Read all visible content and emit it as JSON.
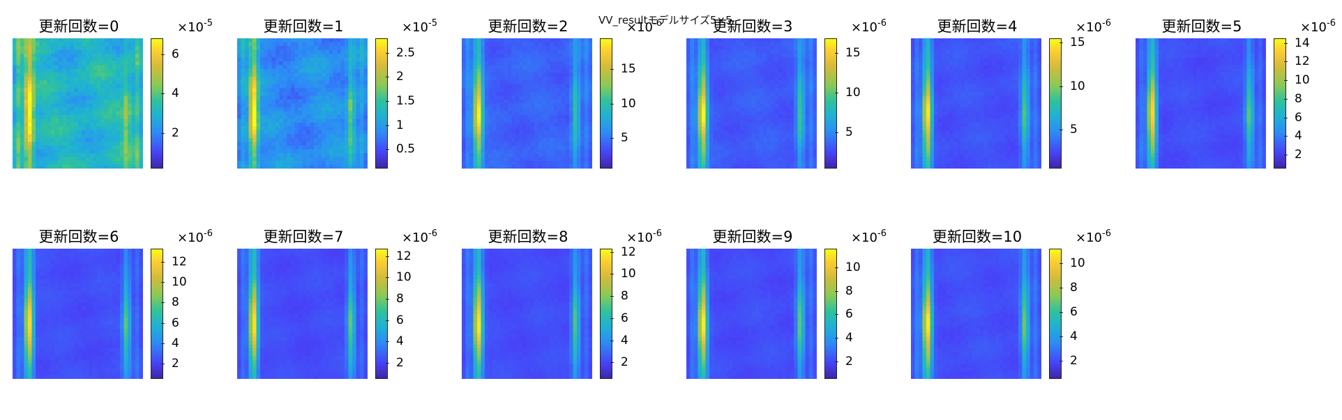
{
  "figure": {
    "suptitle": "VV_resultモデルサイズ5×5"
  },
  "chart_data": [
    {
      "type": "heatmap",
      "title": "更新回数=0",
      "colormap": "parula",
      "scale_exponent": "-5",
      "colorbar_ticks": [
        "2",
        "4",
        "6"
      ],
      "colorbar_tick_values": [
        2,
        4,
        6
      ],
      "clim": [
        0.2,
        6.8
      ],
      "pattern": {
        "left_peak": 6.5,
        "right_peak": 3.6,
        "background": 2.0,
        "noise": 1.4
      }
    },
    {
      "type": "heatmap",
      "title": "更新回数=1",
      "colormap": "parula",
      "scale_exponent": "-5",
      "colorbar_ticks": [
        "0.5",
        "1",
        "1.5",
        "2",
        "2.5"
      ],
      "colorbar_tick_values": [
        0.5,
        1,
        1.5,
        2,
        2.5
      ],
      "clim": [
        0.1,
        2.8
      ],
      "pattern": {
        "left_peak": 2.6,
        "right_peak": 1.5,
        "background": 0.55,
        "noise": 0.45
      }
    },
    {
      "type": "heatmap",
      "title": "更新回数=2",
      "colormap": "parula",
      "scale_exponent": "-6",
      "colorbar_ticks": [
        "5",
        "10",
        "15"
      ],
      "colorbar_tick_values": [
        5,
        10,
        15
      ],
      "clim": [
        0.5,
        19.5
      ],
      "pattern": {
        "left_peak": 18,
        "right_peak": 10,
        "background": 3.0,
        "noise": 1.4
      }
    },
    {
      "type": "heatmap",
      "title": "更新回数=3",
      "colormap": "parula",
      "scale_exponent": "-6",
      "colorbar_ticks": [
        "5",
        "10",
        "15"
      ],
      "colorbar_tick_values": [
        5,
        10,
        15
      ],
      "clim": [
        0.5,
        16.8
      ],
      "pattern": {
        "left_peak": 16,
        "right_peak": 9,
        "background": 2.5,
        "noise": 1.0
      }
    },
    {
      "type": "heatmap",
      "title": "更新回数=4",
      "colormap": "parula",
      "scale_exponent": "-6",
      "colorbar_ticks": [
        "5",
        "10",
        "15"
      ],
      "colorbar_tick_values": [
        5,
        10,
        15
      ],
      "clim": [
        0.5,
        15.5
      ],
      "pattern": {
        "left_peak": 14.5,
        "right_peak": 8.5,
        "background": 2.2,
        "noise": 0.8
      }
    },
    {
      "type": "heatmap",
      "title": "更新回数=5",
      "colormap": "parula",
      "scale_exponent": "-6",
      "colorbar_ticks": [
        "2",
        "4",
        "6",
        "8",
        "10",
        "12",
        "14"
      ],
      "colorbar_tick_values": [
        2,
        4,
        6,
        8,
        10,
        12,
        14
      ],
      "clim": [
        0.5,
        14.5
      ],
      "pattern": {
        "left_peak": 13.5,
        "right_peak": 8,
        "background": 2.0,
        "noise": 0.7
      }
    },
    {
      "type": "heatmap",
      "title": "更新回数=6",
      "colormap": "parula",
      "scale_exponent": "-6",
      "colorbar_ticks": [
        "2",
        "4",
        "6",
        "8",
        "10",
        "12"
      ],
      "colorbar_tick_values": [
        2,
        4,
        6,
        8,
        10,
        12
      ],
      "clim": [
        0.5,
        13.3
      ],
      "pattern": {
        "left_peak": 12.5,
        "right_peak": 7.5,
        "background": 1.9,
        "noise": 0.6
      }
    },
    {
      "type": "heatmap",
      "title": "更新回数=7",
      "colormap": "parula",
      "scale_exponent": "-6",
      "colorbar_ticks": [
        "2",
        "4",
        "6",
        "8",
        "10",
        "12"
      ],
      "colorbar_tick_values": [
        2,
        4,
        6,
        8,
        10,
        12
      ],
      "clim": [
        0.5,
        12.7
      ],
      "pattern": {
        "left_peak": 12,
        "right_peak": 7.5,
        "background": 1.8,
        "noise": 0.55
      }
    },
    {
      "type": "heatmap",
      "title": "更新回数=8",
      "colormap": "parula",
      "scale_exponent": "-6",
      "colorbar_ticks": [
        "2",
        "4",
        "6",
        "8",
        "10",
        "12"
      ],
      "colorbar_tick_values": [
        2,
        4,
        6,
        8,
        10,
        12
      ],
      "clim": [
        0.5,
        12.3
      ],
      "pattern": {
        "left_peak": 11.6,
        "right_peak": 7.2,
        "background": 1.8,
        "noise": 0.5
      }
    },
    {
      "type": "heatmap",
      "title": "更新回数=9",
      "colormap": "parula",
      "scale_exponent": "-6",
      "colorbar_ticks": [
        "2",
        "4",
        "6",
        "8",
        "10"
      ],
      "colorbar_tick_values": [
        2,
        4,
        6,
        8,
        10
      ],
      "clim": [
        0.5,
        11.6
      ],
      "pattern": {
        "left_peak": 11,
        "right_peak": 7,
        "background": 1.7,
        "noise": 0.5
      }
    },
    {
      "type": "heatmap",
      "title": "更新回数=10",
      "colormap": "parula",
      "scale_exponent": "-6",
      "colorbar_ticks": [
        "2",
        "4",
        "6",
        "8",
        "10"
      ],
      "colorbar_tick_values": [
        2,
        4,
        6,
        8,
        10
      ],
      "clim": [
        0.5,
        11.2
      ],
      "pattern": {
        "left_peak": 10.6,
        "right_peak": 6.8,
        "background": 1.7,
        "noise": 0.5
      }
    }
  ]
}
